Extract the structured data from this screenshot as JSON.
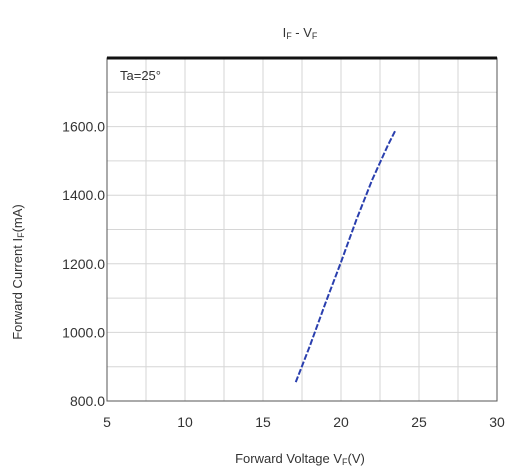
{
  "chart_data": {
    "type": "line",
    "title": {
      "main": "I",
      "sub": "F",
      "mid": " - V",
      "sub2": "F"
    },
    "annotation": "Ta=25°",
    "xlabel": {
      "main": "Forward Voltage V",
      "sub": "F",
      "end": "(V)"
    },
    "ylabel": {
      "main": "Forward Current I",
      "sub": "F",
      "end": "(mA)"
    },
    "xlim": [
      5,
      30
    ],
    "ylim": [
      800,
      1800
    ],
    "x_ticks": [
      5,
      10,
      15,
      20,
      25,
      30
    ],
    "y_ticks": [
      800,
      1000,
      1200,
      1400,
      1600
    ],
    "x_tick_labels": [
      "5",
      "10",
      "15",
      "20",
      "25",
      "30"
    ],
    "y_tick_labels": [
      "800.0",
      "1000.0",
      "1200.0",
      "1400.0",
      "1600.0"
    ],
    "grid": true,
    "series": [
      {
        "color": "#2a3fae",
        "x": [
          17.1,
          18.0,
          19.0,
          20.0,
          21.0,
          22.0,
          23.0,
          23.5
        ],
        "y": [
          855,
          960,
          1085,
          1205,
          1330,
          1445,
          1545,
          1590
        ]
      }
    ]
  }
}
